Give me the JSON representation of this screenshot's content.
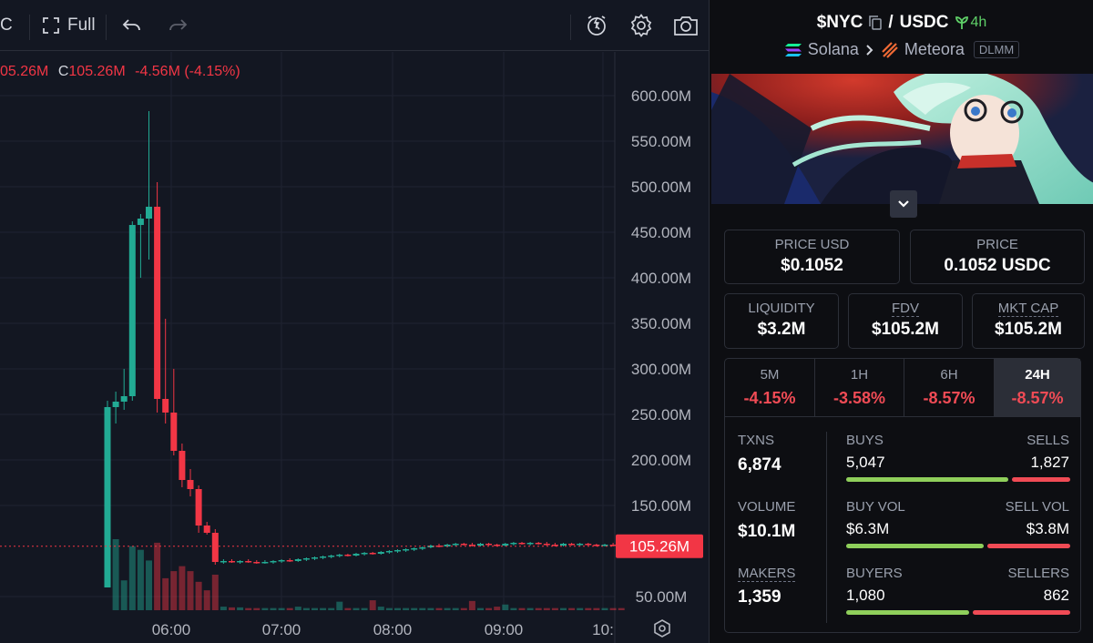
{
  "toolbar": {
    "symbol_fragment": "C",
    "full_label": "Full"
  },
  "ohlc": {
    "prev_fragment": "05.26M",
    "close_label": "C",
    "close_value": "105.26M",
    "change": "-4.56M (-4.15%)"
  },
  "colors": {
    "up": "#22ab94",
    "down": "#f23645",
    "buy_bar": "#8fcf5b",
    "sell_bar": "#f04b55",
    "accent_green": "#5fd068"
  },
  "chart_data": {
    "type": "candlestick",
    "y_axis_labels": [
      "600.00M",
      "550.00M",
      "500.00M",
      "450.00M",
      "400.00M",
      "350.00M",
      "300.00M",
      "250.00M",
      "200.00M",
      "150.00M",
      "50.00M"
    ],
    "x_axis_labels": [
      "06:00",
      "07:00",
      "08:00",
      "09:00",
      "10:"
    ],
    "ylim_m": [
      45,
      625
    ],
    "last_price_label": "105.26M",
    "last_price_m": 105.26,
    "time_start": "05:25",
    "minutes_per_bar": 5,
    "candles": [
      {
        "o": 60,
        "h": 265,
        "l": 60,
        "c": 258
      },
      {
        "o": 258,
        "h": 275,
        "l": 240,
        "c": 264
      },
      {
        "o": 264,
        "h": 300,
        "l": 255,
        "c": 270
      },
      {
        "o": 270,
        "h": 462,
        "l": 265,
        "c": 458
      },
      {
        "o": 458,
        "h": 470,
        "l": 400,
        "c": 465
      },
      {
        "o": 465,
        "h": 583,
        "l": 420,
        "c": 478
      },
      {
        "o": 478,
        "h": 505,
        "l": 252,
        "c": 267
      },
      {
        "o": 267,
        "h": 355,
        "l": 240,
        "c": 252
      },
      {
        "o": 252,
        "h": 300,
        "l": 205,
        "c": 210
      },
      {
        "o": 210,
        "h": 218,
        "l": 170,
        "c": 178
      },
      {
        "o": 178,
        "h": 190,
        "l": 160,
        "c": 168
      },
      {
        "o": 168,
        "h": 172,
        "l": 120,
        "c": 128
      },
      {
        "o": 128,
        "h": 132,
        "l": 118,
        "c": 120
      },
      {
        "o": 120,
        "h": 124,
        "l": 85,
        "c": 88
      },
      {
        "o": 88,
        "h": 91,
        "l": 86,
        "c": 89
      },
      {
        "o": 89,
        "h": 91,
        "l": 87,
        "c": 88
      },
      {
        "o": 88,
        "h": 90,
        "l": 86,
        "c": 89
      },
      {
        "o": 89,
        "h": 91,
        "l": 87,
        "c": 88
      },
      {
        "o": 88,
        "h": 90,
        "l": 86,
        "c": 87
      },
      {
        "o": 87,
        "h": 90,
        "l": 86,
        "c": 88
      },
      {
        "o": 88,
        "h": 90,
        "l": 86,
        "c": 89
      },
      {
        "o": 89,
        "h": 91,
        "l": 87,
        "c": 90
      },
      {
        "o": 90,
        "h": 92,
        "l": 88,
        "c": 89
      },
      {
        "o": 89,
        "h": 92,
        "l": 88,
        "c": 91
      },
      {
        "o": 91,
        "h": 93,
        "l": 89,
        "c": 92
      },
      {
        "o": 92,
        "h": 94,
        "l": 90,
        "c": 93
      },
      {
        "o": 93,
        "h": 95,
        "l": 91,
        "c": 94
      },
      {
        "o": 94,
        "h": 96,
        "l": 92,
        "c": 95
      },
      {
        "o": 95,
        "h": 97,
        "l": 93,
        "c": 96
      },
      {
        "o": 96,
        "h": 97,
        "l": 94,
        "c": 95
      },
      {
        "o": 95,
        "h": 98,
        "l": 94,
        "c": 97
      },
      {
        "o": 97,
        "h": 99,
        "l": 95,
        "c": 98
      },
      {
        "o": 98,
        "h": 99,
        "l": 96,
        "c": 97
      },
      {
        "o": 97,
        "h": 100,
        "l": 96,
        "c": 99
      },
      {
        "o": 99,
        "h": 101,
        "l": 97,
        "c": 100
      },
      {
        "o": 100,
        "h": 102,
        "l": 98,
        "c": 101
      },
      {
        "o": 101,
        "h": 103,
        "l": 99,
        "c": 102
      },
      {
        "o": 102,
        "h": 104,
        "l": 100,
        "c": 103
      },
      {
        "o": 103,
        "h": 105,
        "l": 101,
        "c": 104
      },
      {
        "o": 104,
        "h": 107,
        "l": 103,
        "c": 106
      },
      {
        "o": 106,
        "h": 108,
        "l": 104,
        "c": 105
      },
      {
        "o": 105,
        "h": 108,
        "l": 104,
        "c": 107
      },
      {
        "o": 107,
        "h": 109,
        "l": 105,
        "c": 108
      },
      {
        "o": 108,
        "h": 109,
        "l": 106,
        "c": 107
      },
      {
        "o": 107,
        "h": 109,
        "l": 105,
        "c": 106
      },
      {
        "o": 106,
        "h": 109,
        "l": 105,
        "c": 108
      },
      {
        "o": 108,
        "h": 109,
        "l": 106,
        "c": 107
      },
      {
        "o": 107,
        "h": 108,
        "l": 105,
        "c": 106
      },
      {
        "o": 106,
        "h": 109,
        "l": 105,
        "c": 108
      },
      {
        "o": 108,
        "h": 110,
        "l": 106,
        "c": 109
      },
      {
        "o": 109,
        "h": 110,
        "l": 107,
        "c": 108
      },
      {
        "o": 108,
        "h": 110,
        "l": 106,
        "c": 109
      },
      {
        "o": 109,
        "h": 110,
        "l": 107,
        "c": 108
      },
      {
        "o": 108,
        "h": 110,
        "l": 106,
        "c": 107
      },
      {
        "o": 107,
        "h": 109,
        "l": 105,
        "c": 106
      },
      {
        "o": 106,
        "h": 109,
        "l": 105,
        "c": 108
      },
      {
        "o": 108,
        "h": 109,
        "l": 106,
        "c": 107
      },
      {
        "o": 107,
        "h": 109,
        "l": 105,
        "c": 108
      },
      {
        "o": 108,
        "h": 109,
        "l": 106,
        "c": 107
      },
      {
        "o": 107,
        "h": 108,
        "l": 105,
        "c": 106
      },
      {
        "o": 106,
        "h": 108,
        "l": 105,
        "c": 107
      },
      {
        "o": 107,
        "h": 109,
        "l": 105,
        "c": 106
      },
      {
        "o": 106,
        "h": 108,
        "l": 104,
        "c": 105
      }
    ],
    "volume_relative": [
      0.0,
      1.0,
      0.42,
      0.9,
      0.85,
      0.7,
      0.95,
      0.45,
      0.55,
      0.62,
      0.55,
      0.4,
      0.28,
      0.5,
      0.05,
      0.04,
      0.04,
      0.03,
      0.03,
      0.03,
      0.03,
      0.03,
      0.03,
      0.05,
      0.03,
      0.03,
      0.03,
      0.03,
      0.12,
      0.03,
      0.03,
      0.03,
      0.14,
      0.05,
      0.03,
      0.03,
      0.03,
      0.03,
      0.03,
      0.03,
      0.03,
      0.03,
      0.03,
      0.03,
      0.13,
      0.03,
      0.03,
      0.05,
      0.08,
      0.03,
      0.03,
      0.03,
      0.03,
      0.03,
      0.03,
      0.03,
      0.03,
      0.03,
      0.03,
      0.03,
      0.03,
      0.03,
      0.03
    ]
  },
  "pair": {
    "base": "$NYC",
    "separator": "/",
    "quote": "USDC",
    "age": "4h",
    "chain": "Solana",
    "dex": "Meteora",
    "pool_type": "DLMM"
  },
  "stats": {
    "price_usd_label": "PRICE USD",
    "price_usd_value": "$0.1052",
    "price_label": "PRICE",
    "price_value": "0.1052 USDC",
    "liquidity_label": "LIQUIDITY",
    "liquidity_value": "$3.2M",
    "fdv_label": "FDV",
    "fdv_value": "$105.2M",
    "mktcap_label": "MKT CAP",
    "mktcap_value": "$105.2M"
  },
  "timeframes": [
    {
      "label": "5M",
      "value": "-4.15%"
    },
    {
      "label": "1H",
      "value": "-3.58%"
    },
    {
      "label": "6H",
      "value": "-8.57%"
    },
    {
      "label": "24H",
      "value": "-8.57%"
    }
  ],
  "txns": {
    "txns_label": "TXNS",
    "txns_value": "6,874",
    "volume_label": "VOLUME",
    "volume_value": "$10.1M",
    "makers_label": "MAKERS",
    "makers_value": "1,359",
    "buys_label": "BUYS",
    "buys_value": "5,047",
    "sells_label": "SELLS",
    "sells_value": "1,827",
    "buy_vol_label": "BUY VOL",
    "buy_vol_value": "$6.3M",
    "sell_vol_label": "SELL VOL",
    "sell_vol_value": "$3.8M",
    "buyers_label": "BUYERS",
    "buyers_value": "1,080",
    "sellers_label": "SELLERS",
    "sellers_value": "862",
    "buys_share": 0.734,
    "buy_vol_share": 0.624,
    "buyers_share": 0.556
  },
  "icons": {
    "fullscreen": "fullscreen-icon",
    "undo": "undo-icon",
    "redo": "redo-icon",
    "alert": "alert-icon",
    "settings": "settings-icon",
    "camera": "camera-icon",
    "copy": "copy-icon",
    "sprout": "sprout-icon",
    "solana": "solana-icon",
    "meteora": "meteora-icon",
    "chevron": "chevron-right-icon",
    "expand": "chevron-down-icon"
  }
}
